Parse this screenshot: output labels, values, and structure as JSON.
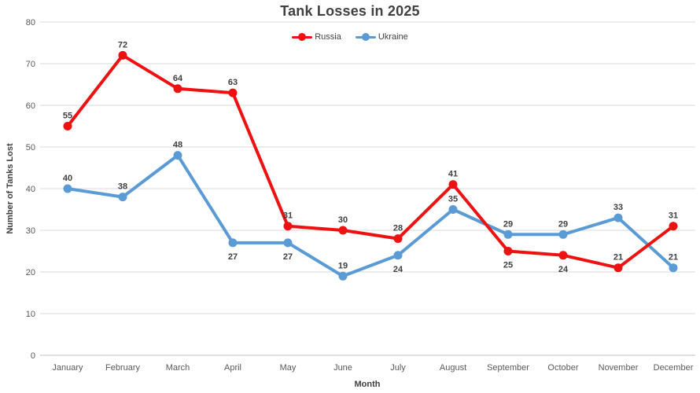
{
  "colors": {
    "background": "#ffffff",
    "title_text": "#404040",
    "tick_label": "#595959",
    "data_label": "#404040",
    "axis_title": "#404040",
    "gridline": "#d9d9d9",
    "axis_line": "#bfbfbf"
  },
  "chart_data": {
    "type": "line",
    "title": "Tank Losses in 2025",
    "xlabel": "Month",
    "ylabel": "Number of Tanks Lost",
    "ylim": [
      0,
      80
    ],
    "y_ticks": [
      0,
      10,
      20,
      30,
      40,
      50,
      60,
      70,
      80
    ],
    "grid": true,
    "legend_position": "top-center",
    "categories": [
      "January",
      "February",
      "March",
      "April",
      "May",
      "June",
      "July",
      "August",
      "September",
      "October",
      "November",
      "December"
    ],
    "series": [
      {
        "name": "Russia",
        "color": "#ee1111",
        "values": [
          55,
          72,
          64,
          63,
          31,
          30,
          28,
          41,
          25,
          24,
          21,
          31
        ],
        "label_placement": [
          "above",
          "above",
          "above",
          "above",
          "above",
          "above",
          "above",
          "above",
          "below",
          "below",
          "above",
          "above"
        ]
      },
      {
        "name": "Ukraine",
        "color": "#5b9bd5",
        "values": [
          40,
          38,
          48,
          27,
          27,
          19,
          24,
          35,
          29,
          29,
          33,
          21
        ],
        "label_placement": [
          "above",
          "above",
          "above",
          "below",
          "below",
          "above",
          "below",
          "above",
          "above",
          "above",
          "above",
          "above"
        ]
      }
    ]
  }
}
